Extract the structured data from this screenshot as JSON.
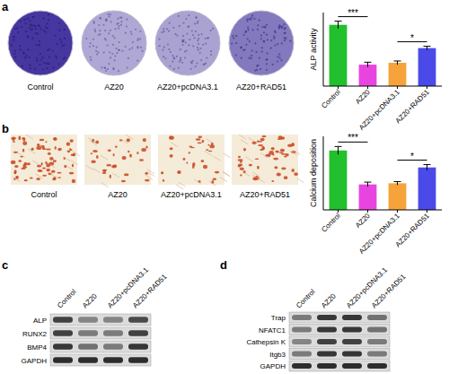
{
  "chart_data": [
    {
      "type": "bar",
      "categories": [
        "Control",
        "AZ20",
        "AZ20+pcDNA3.1",
        "AZ20+RAD51"
      ],
      "values": [
        1.0,
        0.35,
        0.38,
        0.62
      ],
      "errors": [
        0.06,
        0.04,
        0.03,
        0.03
      ],
      "colors": [
        "#22c02c",
        "#e845e0",
        "#f5a33a",
        "#4a4ae8"
      ],
      "ylabel": "ALP activity",
      "ylim": [
        0,
        1.2
      ],
      "tick_labels": "x",
      "significance": [
        {
          "pair": [
            "Control",
            "AZ20"
          ],
          "label": "***"
        },
        {
          "pair": [
            "AZ20+pcDNA3.1",
            "AZ20+RAD51"
          ],
          "label": "*"
        }
      ]
    },
    {
      "type": "bar",
      "categories": [
        "Control",
        "AZ20",
        "AZ20+pcDNA3.1",
        "AZ20+RAD51"
      ],
      "values": [
        1.05,
        0.45,
        0.47,
        0.75
      ],
      "errors": [
        0.07,
        0.04,
        0.03,
        0.05
      ],
      "colors": [
        "#22c02c",
        "#e845e0",
        "#f5a33a",
        "#4a4ae8"
      ],
      "ylabel": "Calcium deposition",
      "ylim": [
        0,
        1.3
      ],
      "tick_labels": "x",
      "significance": [
        {
          "pair": [
            "Control",
            "AZ20"
          ],
          "label": "***"
        },
        {
          "pair": [
            "AZ20+pcDNA3.1",
            "AZ20+RAD51"
          ],
          "label": "*"
        }
      ]
    }
  ],
  "panel_labels": [
    "a",
    "b",
    "c",
    "d"
  ],
  "staining": [
    {
      "labels": [
        "Control",
        "AZ20",
        "AZ20+pcDNA3.1",
        "AZ20+RAD51"
      ]
    },
    {
      "labels": [
        "Control",
        "AZ20",
        "AZ20+pcDNA3.1",
        "AZ20+RAD51"
      ]
    }
  ],
  "blots": [
    {
      "lanes": [
        "Control",
        "AZ20",
        "AZ20+pcDNA3.1",
        "AZ20+RAD51"
      ],
      "rows": [
        {
          "protein": "ALP",
          "band_intensity": [
            0.8,
            0.45,
            0.45,
            0.75
          ]
        },
        {
          "protein": "RUNX2",
          "band_intensity": [
            0.8,
            0.5,
            0.5,
            0.8
          ]
        },
        {
          "protein": "BMP4",
          "band_intensity": [
            0.85,
            0.55,
            0.5,
            0.85
          ]
        },
        {
          "protein": "GAPDH",
          "band_intensity": [
            0.9,
            0.9,
            0.9,
            0.9
          ]
        }
      ]
    },
    {
      "lanes": [
        "Control",
        "AZ20",
        "AZ20+pcDNA3.1",
        "AZ20+RAD51"
      ],
      "rows": [
        {
          "protein": "Trap",
          "band_intensity": [
            0.5,
            0.85,
            0.85,
            0.55
          ]
        },
        {
          "protein": "NFATC1",
          "band_intensity": [
            0.5,
            0.85,
            0.85,
            0.55
          ]
        },
        {
          "protein": "Cathepsin K",
          "band_intensity": [
            0.45,
            0.8,
            0.8,
            0.5
          ]
        },
        {
          "protein": "Itgb3",
          "band_intensity": [
            0.5,
            0.85,
            0.85,
            0.5
          ]
        },
        {
          "protein": "GAPDH",
          "band_intensity": [
            0.9,
            0.9,
            0.9,
            0.9
          ]
        }
      ]
    }
  ]
}
